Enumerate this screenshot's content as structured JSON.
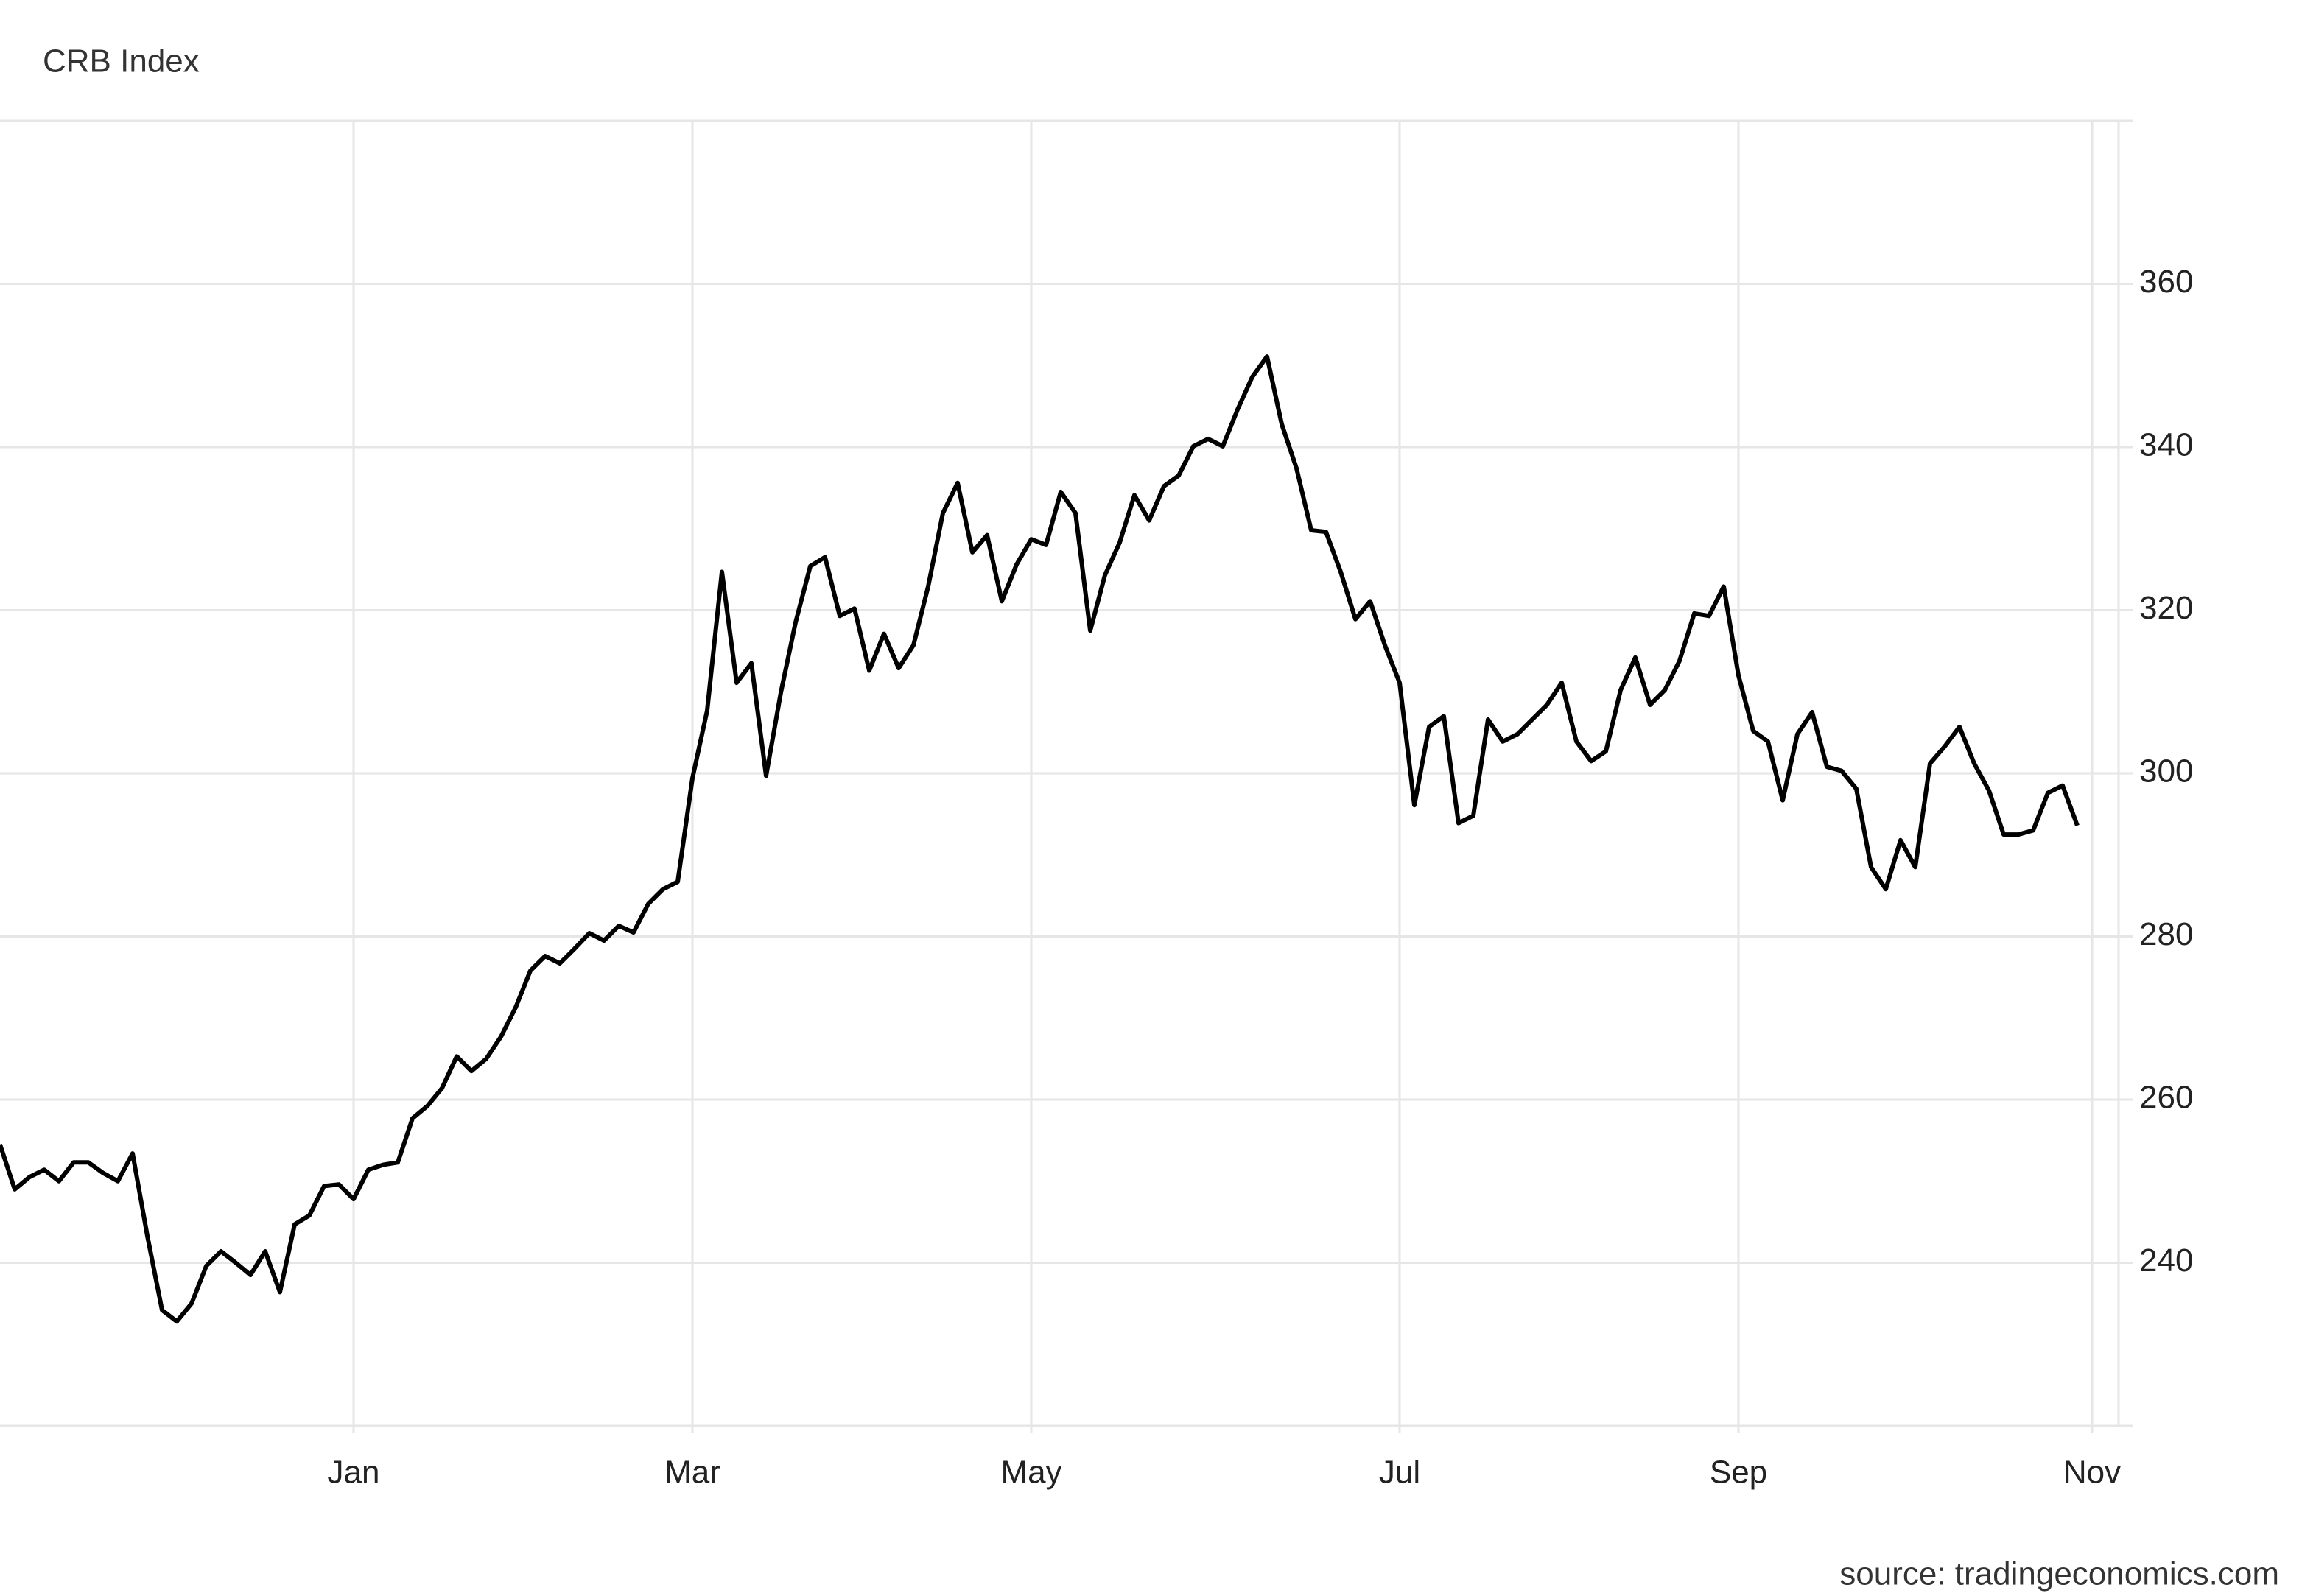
{
  "chart_data": {
    "type": "line",
    "title": "CRB Index",
    "source": "source: tradingeconomics.com",
    "categories": [
      null,
      null,
      null,
      null,
      null,
      null,
      null,
      null,
      null,
      null,
      null,
      null,
      null,
      null,
      null,
      null,
      null,
      null,
      null,
      null,
      null,
      null,
      null,
      null,
      "Jan",
      null,
      null,
      null,
      null,
      null,
      null,
      null,
      null,
      null,
      null,
      null,
      null,
      null,
      null,
      null,
      null,
      null,
      null,
      null,
      null,
      null,
      null,
      "Mar",
      null,
      null,
      null,
      null,
      null,
      null,
      null,
      null,
      null,
      null,
      null,
      null,
      null,
      null,
      null,
      null,
      null,
      null,
      null,
      null,
      null,
      null,
      "May",
      null,
      null,
      null,
      null,
      null,
      null,
      null,
      null,
      null,
      null,
      null,
      null,
      null,
      null,
      null,
      null,
      null,
      null,
      null,
      null,
      null,
      null,
      null,
      null,
      "Jul",
      null,
      null,
      null,
      null,
      null,
      null,
      null,
      null,
      null,
      null,
      null,
      null,
      null,
      null,
      null,
      null,
      null,
      null,
      null,
      null,
      null,
      null,
      "Sep",
      null,
      null,
      null,
      null,
      null,
      null,
      null,
      null,
      null,
      null,
      null,
      null,
      null,
      null,
      null,
      null,
      null,
      null,
      null,
      null,
      null,
      null,
      null,
      "Nov"
    ],
    "series": [
      {
        "name": "CRB Index",
        "color": "#000000",
        "values": [
          254.5,
          249,
          250.5,
          251.4,
          250,
          252.3,
          252.3,
          251,
          250,
          253.4,
          243.3,
          234.2,
          232.8,
          235,
          239.6,
          241.4,
          240,
          238.5,
          241.4,
          236.4,
          244.7,
          245.8,
          249.4,
          249.6,
          247.8,
          251.4,
          252,
          252.3,
          257.7,
          259.2,
          261.4,
          265.3,
          263.5,
          265,
          267.7,
          271.3,
          275.8,
          277.6,
          276.7,
          278.5,
          280.4,
          279.5,
          281.3,
          280.5,
          284,
          285.8,
          286.7,
          299.4,
          307.7,
          324.7,
          311.1,
          313.5,
          299.7,
          309.9,
          318.5,
          325.4,
          326.5,
          319.3,
          320.2,
          312.6,
          317.1,
          312.9,
          315.7,
          322.9,
          331.9,
          335.6,
          327.1,
          329.2,
          321.1,
          325.6,
          328.7,
          328,
          334.5,
          331.9,
          317.5,
          324.3,
          328.3,
          334.1,
          331,
          335.2,
          336.5,
          340.1,
          341,
          340.1,
          344.6,
          348.6,
          351.1,
          342.8,
          337.4,
          329.8,
          329.6,
          324.7,
          318.9,
          321.1,
          315.7,
          311.1,
          296.1,
          305.7,
          307,
          293.9,
          294.8,
          306.6,
          303.9,
          304.8,
          306.6,
          308.4,
          311.1,
          303.9,
          301.5,
          302.7,
          310.2,
          314.2,
          308.4,
          310.2,
          313.8,
          319.6,
          319.3,
          322.9,
          312,
          305.2,
          303.9,
          296.7,
          304.8,
          307.5,
          300.8,
          300.3,
          298.1,
          288.5,
          285.8,
          291.8,
          288.5,
          301.2,
          303.3,
          305.7,
          301.2,
          297.9,
          292.5,
          292.5,
          293,
          297.6,
          298.5,
          293.6,
          null
        ]
      }
    ],
    "ylim": [
      220,
      380
    ],
    "yticks": [
      240,
      260,
      280,
      300,
      320,
      340,
      360
    ],
    "grid": true
  }
}
